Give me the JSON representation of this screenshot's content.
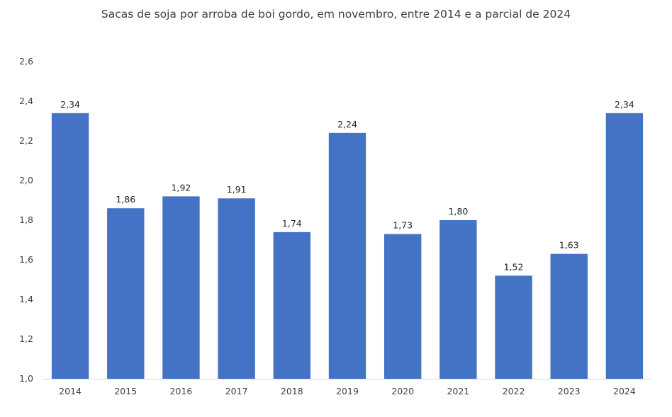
{
  "chart_data": {
    "type": "bar",
    "title": "Sacas de soja por arroba de boi gordo, em novembro, entre 2014 e a parcial de 2024",
    "categories": [
      "2014",
      "2015",
      "2016",
      "2017",
      "2018",
      "2019",
      "2020",
      "2021",
      "2022",
      "2023",
      "2024"
    ],
    "values": [
      2.34,
      1.86,
      1.92,
      1.91,
      1.74,
      2.24,
      1.73,
      1.8,
      1.52,
      1.63,
      2.34
    ],
    "data_labels": [
      "2,34",
      "1,86",
      "1,92",
      "1,91",
      "1,74",
      "2,24",
      "1,73",
      "1,80",
      "1,52",
      "1,63",
      "2,34"
    ],
    "y_ticks": [
      1.0,
      1.2,
      1.4,
      1.6,
      1.8,
      2.0,
      2.2,
      2.4,
      2.6
    ],
    "y_tick_labels": [
      "1,0",
      "1,2",
      "1,4",
      "1,6",
      "1,8",
      "2,0",
      "2,2",
      "2,4",
      "2,6"
    ],
    "ylim": [
      1.0,
      2.6
    ],
    "grid": false,
    "legend": "none",
    "bar_color": "#4472C4",
    "axis_color": "#D9D9D9"
  }
}
